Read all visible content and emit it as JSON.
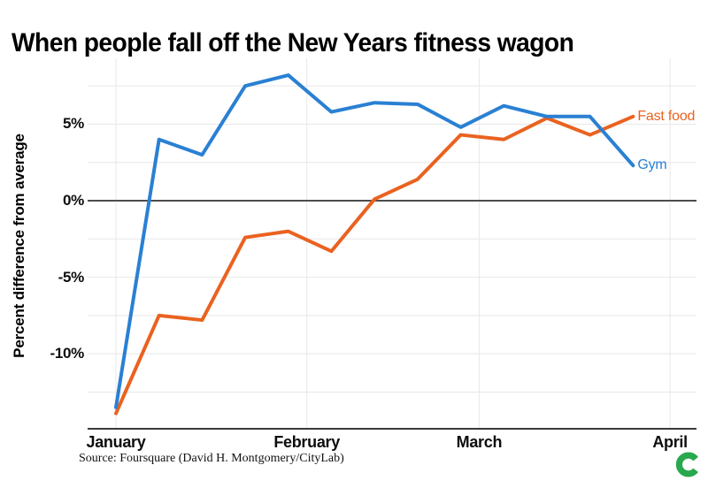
{
  "header": {
    "title": "When people fall off the New Years fitness wagon"
  },
  "footer": {
    "source": "Source: Foursquare (David H. Montgomery/CityLab)",
    "logo_letter": "C",
    "logo_color": "#29a84d"
  },
  "chart_data": {
    "type": "line",
    "title": "When people fall off the New Years fitness wagon",
    "xlabel": "",
    "ylabel": "Percent difference from average",
    "x_unit": "days since Jan 1, weekly points",
    "x_days": [
      0,
      7,
      14,
      21,
      28,
      35,
      42,
      49,
      56,
      63,
      70,
      77,
      84
    ],
    "series": [
      {
        "name": "Fast food",
        "color": "#ea6220",
        "values": [
          -13.9,
          -7.5,
          -7.8,
          -2.4,
          -2.0,
          -3.3,
          0.1,
          1.4,
          4.3,
          4.0,
          5.4,
          4.3,
          5.5
        ]
      },
      {
        "name": "Gym",
        "color": "#2a80d3",
        "values": [
          -13.5,
          4.0,
          3.0,
          7.5,
          8.2,
          5.8,
          6.4,
          6.3,
          4.8,
          6.2,
          5.5,
          5.5,
          2.3
        ]
      }
    ],
    "x_ticks": [
      {
        "label": "January",
        "day": 0
      },
      {
        "label": "February",
        "day": 31
      },
      {
        "label": "March",
        "day": 59
      },
      {
        "label": "April",
        "day": 90
      }
    ],
    "y_ticks": [
      {
        "label": "5%",
        "value": 5
      },
      {
        "label": "0%",
        "value": 0
      },
      {
        "label": "-5%",
        "value": -5
      },
      {
        "label": "-10%",
        "value": -10
      }
    ],
    "y_gridlines": [
      7.5,
      5,
      2.5,
      -2.5,
      -5,
      -7.5,
      -10,
      -12.5
    ],
    "ylim": [
      -14.9,
      9.3
    ],
    "xlim_days": [
      -4.6,
      94.3
    ],
    "grid": true,
    "zero_line": true,
    "legend_position": "line-end labels",
    "colors": {
      "grid": "#e8e8e8",
      "zero_line": "#4d4d4d",
      "axis_line": "#3a3a3a"
    }
  }
}
